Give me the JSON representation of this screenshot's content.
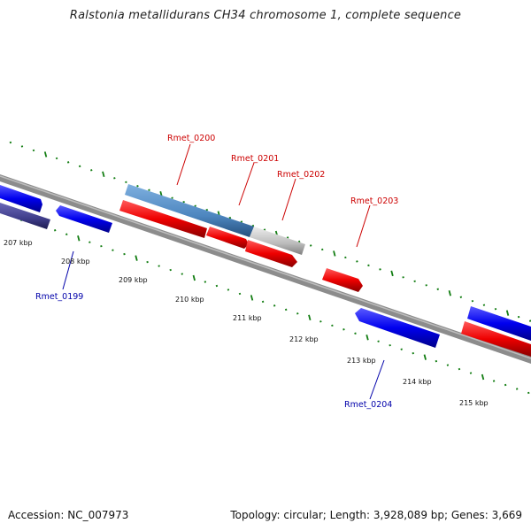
{
  "title": "Ralstonia metallidurans CH34 chromosome 1, complete sequence",
  "footer": {
    "accession": "Accession: NC_007973",
    "topology": "Topology: circular; Length: 3,928,089 bp; Genes: 3,669"
  },
  "colors": {
    "forward": "#ee0000",
    "reverse": "#0000ee",
    "rna": "#4d86bf",
    "pseudo": "#bbbbbb",
    "other_gene": "#3f3d8a",
    "backbone": "#888888",
    "ticks": "#127d12",
    "forward_label": "#cc0000",
    "reverse_label": "#0000aa"
  },
  "ticks": [
    "207 kbp",
    "208 kbp",
    "209 kbp",
    "210 kbp",
    "211 kbp",
    "212 kbp",
    "213 kbp",
    "214 kbp",
    "215 kbp"
  ],
  "gene_labels": [
    {
      "name": "Rmet_0199",
      "strand": "reverse"
    },
    {
      "name": "Rmet_0200",
      "strand": "forward"
    },
    {
      "name": "Rmet_0201",
      "strand": "forward"
    },
    {
      "name": "Rmet_0202",
      "strand": "forward"
    },
    {
      "name": "Rmet_0203",
      "strand": "forward"
    },
    {
      "name": "Rmet_0204",
      "strand": "reverse"
    }
  ]
}
